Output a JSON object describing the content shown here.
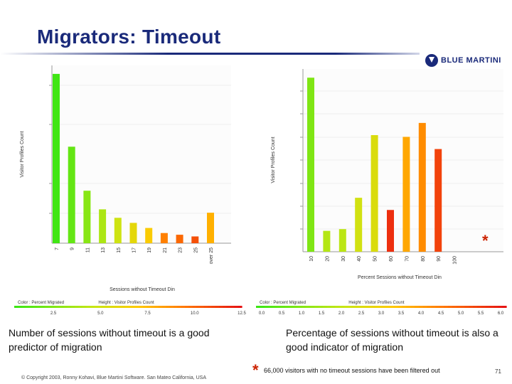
{
  "slide": {
    "title": "Migrators: Timeout",
    "logo_text": "BLUE MARTINI",
    "left_caption": "Number of sessions without timeout is a good predictor of migration",
    "right_caption": "Percentage of sessions without timeout is also a good indicator of migration",
    "footer": "© Copyright 2003, Ronny Kohavi, Blue Martini Software. San Mateo California, USA",
    "note_star": "*",
    "note_text": "66,000 visitors with no timeout sessions have been filtered out",
    "page_number": "71",
    "chart_star": "*"
  },
  "chart_data": [
    {
      "type": "bar",
      "title": "",
      "xlabel": "Sessions without Timeout Din",
      "ylabel": "Visitor Profiles Count",
      "categories": [
        "7",
        "9",
        "11",
        "13",
        "15",
        "17",
        "19",
        "21",
        "23",
        "25",
        "over 25"
      ],
      "values": [
        100,
        57,
        31,
        20,
        15,
        12,
        9,
        6,
        5,
        4,
        18
      ],
      "percent_migrated": [
        2.6,
        3.5,
        4.4,
        5.3,
        6.2,
        7.0,
        7.8,
        9.8,
        10.4,
        11.0,
        8.6
      ],
      "ylim": [
        0,
        105
      ],
      "grid": true,
      "legend": {
        "color_label": "Color :",
        "color_field": "Percent Migrated",
        "height_label": "Height :",
        "height_field": "Visitor Profiles Count",
        "scale": [
          "2.5",
          "5.0",
          "7.5",
          "10.0",
          "12.5"
        ]
      }
    },
    {
      "type": "bar",
      "title": "",
      "xlabel": "Percent Sessions without Timeout Din",
      "ylabel": "Visitor Profiles Count",
      "categories": [
        "10",
        "20",
        "30",
        "40",
        "50",
        "60",
        "70",
        "80",
        "90",
        "100"
      ],
      "values": [
        100,
        12,
        13,
        31,
        67,
        24,
        66,
        74,
        59,
        0
      ],
      "percent_migrated": [
        1.0,
        1.8,
        1.9,
        2.3,
        2.5,
        5.6,
        3.8,
        4.2,
        5.3,
        0
      ],
      "ylim": [
        0,
        105
      ],
      "grid": true,
      "legend": {
        "color_label": "Color :",
        "color_field": "Percent Migrated",
        "height_label": "Height :",
        "height_field": "Visitor Profiles Count",
        "scale": [
          "0.0",
          "0.5",
          "1.0",
          "1.5",
          "2.0",
          "2.5",
          "3.0",
          "3.5",
          "4.0",
          "4.5",
          "5.0",
          "5.5",
          "6.0"
        ]
      }
    }
  ]
}
